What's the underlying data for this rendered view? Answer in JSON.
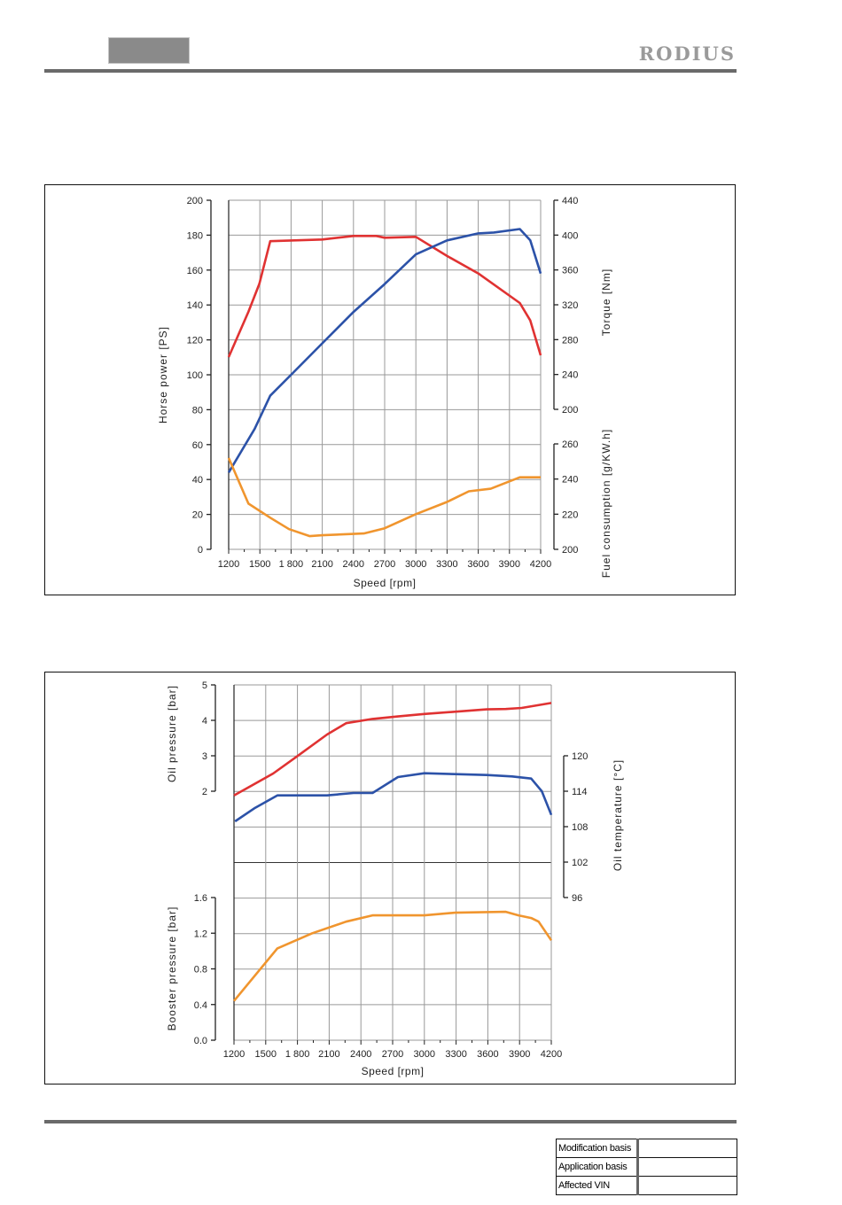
{
  "header": {
    "logo": "RODIUS"
  },
  "footer": {
    "rows": [
      {
        "label": "Modification basis",
        "value": ""
      },
      {
        "label": "Application basis",
        "value": ""
      },
      {
        "label": "Affected VIN",
        "value": ""
      }
    ]
  },
  "colors": {
    "red": "#e03232",
    "blue": "#2c52a8",
    "orange": "#f0952e"
  },
  "chart_data": [
    {
      "type": "line",
      "title": "",
      "xlabel": "Speed [rpm]",
      "xlim": [
        1200,
        4200
      ],
      "x_ticks": [
        "1200",
        "1500",
        "1 800",
        "2100",
        "2400",
        "2700",
        "3000",
        "3300",
        "3600",
        "3900",
        "4200"
      ],
      "grid": true,
      "axes": [
        {
          "id": "hp",
          "side": "left",
          "label": "Horse power [PS]",
          "range": [
            0,
            200
          ],
          "ticks": [
            "0",
            "20",
            "40",
            "60",
            "80",
            "100",
            "120",
            "140",
            "160",
            "180",
            "200"
          ]
        },
        {
          "id": "torque",
          "side": "right",
          "label": "Torque [Nm]",
          "range": [
            200,
            440
          ],
          "ticks": [
            "200",
            "240",
            "280",
            "320",
            "360",
            "400",
            "440"
          ]
        },
        {
          "id": "fuel",
          "side": "right",
          "label": "Fuel consumption [g/KW.h]",
          "range": [
            200,
            260
          ],
          "ticks": [
            "200",
            "220",
            "240",
            "260"
          ]
        }
      ],
      "series": [
        {
          "axis": "torque",
          "color": "#e03232",
          "points": [
            [
              1200,
              260
            ],
            [
              1390,
              312
            ],
            [
              1495,
              344
            ],
            [
              1600,
              393
            ],
            [
              2100,
              395
            ],
            [
              2400,
              399
            ],
            [
              2620,
              399
            ],
            [
              2700,
              397
            ],
            [
              3000,
              398
            ],
            [
              3300,
              376
            ],
            [
              3600,
              356
            ],
            [
              4000,
              322
            ],
            [
              4100,
              302
            ],
            [
              4200,
              262
            ]
          ]
        },
        {
          "axis": "hp",
          "color": "#2c52a8",
          "points": [
            [
              1200,
              44
            ],
            [
              1450,
              69
            ],
            [
              1600,
              88
            ],
            [
              1800,
              100
            ],
            [
              2100,
              118
            ],
            [
              2400,
              136
            ],
            [
              2700,
              152
            ],
            [
              3000,
              169
            ],
            [
              3300,
              177
            ],
            [
              3600,
              181
            ],
            [
              3750,
              181.5
            ],
            [
              4000,
              183.5
            ],
            [
              4100,
              177
            ],
            [
              4200,
              158
            ]
          ]
        },
        {
          "axis": "fuel",
          "color": "#f0952e",
          "points": [
            [
              1200,
              252
            ],
            [
              1390,
              226
            ],
            [
              1600,
              218
            ],
            [
              1780,
              211.5
            ],
            [
              1980,
              207.5
            ],
            [
              2100,
              208
            ],
            [
              2500,
              209
            ],
            [
              2700,
              212
            ],
            [
              3000,
              220
            ],
            [
              3300,
              227
            ],
            [
              3510,
              233
            ],
            [
              3720,
              234.5
            ],
            [
              4000,
              241
            ],
            [
              4200,
              241
            ]
          ]
        }
      ]
    },
    {
      "type": "line",
      "title": "",
      "xlabel": "Speed [rpm]",
      "xlim": [
        1200,
        4200
      ],
      "x_ticks": [
        "1200",
        "1500",
        "1 800",
        "2100",
        "2400",
        "2700",
        "3000",
        "3300",
        "3600",
        "3900",
        "4200"
      ],
      "grid": true,
      "axes": [
        {
          "id": "oil_pressure",
          "side": "left",
          "label": "Oil pressure [bar]",
          "range": [
            2,
            5
          ],
          "ticks": [
            "2",
            "3",
            "4",
            "5"
          ]
        },
        {
          "id": "booster",
          "side": "left",
          "label": "Booster pressure [bar]",
          "range": [
            0,
            1.6
          ],
          "ticks": [
            "0.0",
            "0.4",
            "0.8",
            "1.2",
            "1.6"
          ]
        },
        {
          "id": "oil_temp",
          "side": "right",
          "label": "Oil temperature [°C]",
          "range": [
            96,
            120
          ],
          "ticks": [
            "96",
            "102",
            "108",
            "114",
            "120"
          ]
        }
      ],
      "series": [
        {
          "axis": "oil_pressure",
          "color": "#e03232",
          "points": [
            [
              1200,
              1.88
            ],
            [
              1570,
              2.5
            ],
            [
              1790,
              2.97
            ],
            [
              2080,
              3.6
            ],
            [
              2260,
              3.92
            ],
            [
              2510,
              4.04
            ],
            [
              2750,
              4.11
            ],
            [
              3000,
              4.18
            ],
            [
              3590,
              4.31
            ],
            [
              3770,
              4.32
            ],
            [
              3920,
              4.35
            ],
            [
              4200,
              4.49
            ]
          ]
        },
        {
          "axis": "oil_temp",
          "color": "#2c52a8",
          "points": [
            [
              1210,
              108.9
            ],
            [
              1400,
              111.2
            ],
            [
              1610,
              113.3
            ],
            [
              2080,
              113.3
            ],
            [
              2330,
              113.7
            ],
            [
              2510,
              113.7
            ],
            [
              2750,
              116.4
            ],
            [
              3000,
              117.05
            ],
            [
              3290,
              116.9
            ],
            [
              3590,
              116.75
            ],
            [
              3830,
              116.5
            ],
            [
              4010,
              116.15
            ],
            [
              4110,
              114
            ],
            [
              4200,
              110
            ]
          ]
        },
        {
          "axis": "booster",
          "color": "#f0952e",
          "points": [
            [
              1200,
              0.44
            ],
            [
              1610,
              1.03
            ],
            [
              1940,
              1.2
            ],
            [
              2260,
              1.33
            ],
            [
              2510,
              1.4
            ],
            [
              3000,
              1.4
            ],
            [
              3290,
              1.43
            ],
            [
              3770,
              1.44
            ],
            [
              3890,
              1.4
            ],
            [
              4010,
              1.37
            ],
            [
              4080,
              1.33
            ],
            [
              4200,
              1.12
            ]
          ]
        }
      ]
    }
  ]
}
